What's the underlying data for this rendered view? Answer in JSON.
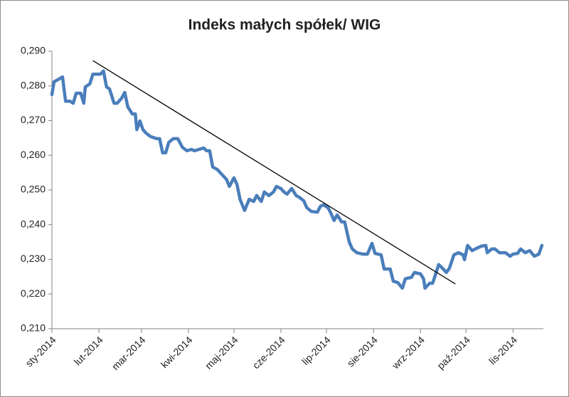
{
  "chart_data": {
    "type": "line",
    "title": "Indeks małych spółek/ WIG",
    "xlim": [
      0,
      324
    ],
    "xticks": [
      {
        "value": 0,
        "label": "sty-2014"
      },
      {
        "value": 31,
        "label": "lut-2014"
      },
      {
        "value": 59,
        "label": "mar-2014"
      },
      {
        "value": 90,
        "label": "kwi-2014"
      },
      {
        "value": 120,
        "label": "maj-2014"
      },
      {
        "value": 151,
        "label": "cze-2014"
      },
      {
        "value": 181,
        "label": "lip-2014"
      },
      {
        "value": 212,
        "label": "sie-2014"
      },
      {
        "value": 243,
        "label": "wrz-2014"
      },
      {
        "value": 273,
        "label": "paź-2014"
      },
      {
        "value": 304,
        "label": "lis-2014"
      }
    ],
    "ylim": [
      0.21,
      0.29
    ],
    "yticks": [
      {
        "value": 0.21,
        "label": "0,210"
      },
      {
        "value": 0.22,
        "label": "0,220"
      },
      {
        "value": 0.23,
        "label": "0,230"
      },
      {
        "value": 0.24,
        "label": "0,240"
      },
      {
        "value": 0.25,
        "label": "0,250"
      },
      {
        "value": 0.26,
        "label": "0,260"
      },
      {
        "value": 0.27,
        "label": "0,270"
      },
      {
        "value": 0.28,
        "label": "0,280"
      },
      {
        "value": 0.29,
        "label": "0,290"
      }
    ],
    "grid": false,
    "series": [
      {
        "color": "#4a7ebb",
        "x": [
          0,
          1.4,
          4,
          7,
          9,
          12,
          14,
          16,
          19,
          21,
          22,
          25,
          27,
          30,
          32,
          34,
          36,
          38,
          41,
          43,
          46,
          48,
          50,
          53,
          55,
          56,
          58,
          60,
          62,
          65,
          69,
          71,
          73,
          75,
          77,
          80,
          83,
          86,
          89,
          92,
          94,
          97,
          100,
          102,
          104,
          106,
          109,
          112,
          115,
          117,
          120,
          122,
          124,
          127,
          130,
          133,
          135,
          138,
          140,
          143,
          146,
          148,
          151,
          153,
          155,
          158,
          161,
          163,
          166,
          168,
          171,
          175,
          177,
          179,
          182,
          184,
          186,
          188,
          191,
          193,
          196,
          198,
          201,
          205,
          208,
          211,
          213,
          217,
          219,
          223,
          225,
          228,
          231,
          233,
          237,
          239,
          243,
          245,
          246,
          249,
          251,
          253,
          255,
          258,
          260,
          262,
          265,
          268,
          271,
          272,
          274,
          277,
          280,
          283,
          286,
          287,
          290,
          292,
          295,
          299,
          302,
          304,
          307,
          309,
          312,
          315,
          318,
          321,
          323
        ],
        "values": [
          0.2775,
          0.2812,
          0.2818,
          0.2826,
          0.2756,
          0.2756,
          0.275,
          0.2779,
          0.2779,
          0.275,
          0.2797,
          0.2806,
          0.2834,
          0.2834,
          0.2834,
          0.2843,
          0.2797,
          0.2791,
          0.275,
          0.275,
          0.2765,
          0.2781,
          0.274,
          0.2719,
          0.2719,
          0.2674,
          0.2699,
          0.2674,
          0.2664,
          0.2654,
          0.2648,
          0.2648,
          0.2607,
          0.2607,
          0.2637,
          0.2648,
          0.2648,
          0.2623,
          0.2613,
          0.2617,
          0.2613,
          0.2617,
          0.2621,
          0.2613,
          0.2613,
          0.2566,
          0.2559,
          0.2545,
          0.2531,
          0.251,
          0.2535,
          0.2516,
          0.2473,
          0.2441,
          0.2473,
          0.2467,
          0.2484,
          0.2467,
          0.2494,
          0.2484,
          0.2494,
          0.251,
          0.2504,
          0.2494,
          0.2488,
          0.2504,
          0.2484,
          0.2479,
          0.2469,
          0.2449,
          0.2438,
          0.2436,
          0.2453,
          0.2457,
          0.2449,
          0.2432,
          0.2412,
          0.2428,
          0.2408,
          0.2408,
          0.235,
          0.233,
          0.2319,
          0.2315,
          0.2315,
          0.2346,
          0.2317,
          0.2313,
          0.2272,
          0.2272,
          0.2237,
          0.2233,
          0.2217,
          0.2244,
          0.2248,
          0.2262,
          0.2258,
          0.2244,
          0.2217,
          0.2231,
          0.2231,
          0.2258,
          0.2285,
          0.2272,
          0.2262,
          0.2274,
          0.2313,
          0.2319,
          0.2313,
          0.2299,
          0.234,
          0.2325,
          0.2332,
          0.2338,
          0.234,
          0.2319,
          0.233,
          0.233,
          0.2319,
          0.2319,
          0.2309,
          0.2315,
          0.2317,
          0.233,
          0.2319,
          0.2325,
          0.2309,
          0.2315,
          0.234
        ]
      }
    ],
    "trendline": {
      "color": "#000000",
      "x": [
        27,
        266
      ],
      "values": [
        0.2873,
        0.2229
      ]
    }
  }
}
